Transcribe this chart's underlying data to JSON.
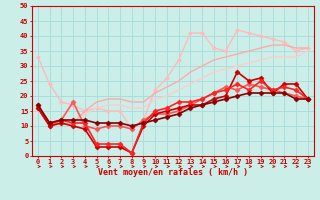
{
  "title": "",
  "xlabel": "Vent moyen/en rafales ( km/h )",
  "ylabel": "",
  "background_color": "#cceee8",
  "grid_color": "#aadddd",
  "xlim": [
    -0.5,
    23.5
  ],
  "ylim": [
    0,
    50
  ],
  "yticks": [
    0,
    5,
    10,
    15,
    20,
    25,
    30,
    35,
    40,
    45,
    50
  ],
  "xticks": [
    0,
    1,
    2,
    3,
    4,
    5,
    6,
    7,
    8,
    9,
    10,
    11,
    12,
    13,
    14,
    15,
    16,
    17,
    18,
    19,
    20,
    21,
    22,
    23
  ],
  "series": [
    {
      "x": [
        0,
        1,
        2,
        3,
        4,
        5,
        6,
        7,
        8,
        9,
        10,
        11,
        12,
        13,
        14,
        15,
        16,
        17,
        18,
        19,
        20,
        21,
        22,
        23
      ],
      "y": [
        33,
        24,
        18,
        17,
        15,
        16,
        15,
        15,
        9,
        12,
        22,
        26,
        32,
        41,
        41,
        36,
        35,
        42,
        41,
        40,
        39,
        38,
        35,
        36
      ],
      "color": "#ffbbbb",
      "lw": 1.0,
      "marker": "D",
      "markersize": 2.0,
      "zorder": 2
    },
    {
      "x": [
        0,
        1,
        2,
        3,
        4,
        5,
        6,
        7,
        8,
        9,
        10,
        11,
        12,
        13,
        14,
        15,
        16,
        17,
        18,
        19,
        20,
        21,
        22,
        23
      ],
      "y": [
        16,
        10,
        11,
        11,
        15,
        18,
        19,
        19,
        18,
        18,
        21,
        23,
        25,
        28,
        30,
        32,
        33,
        34,
        35,
        36,
        37,
        37,
        36,
        36
      ],
      "color": "#ffaaaa",
      "lw": 1.0,
      "marker": null,
      "zorder": 2
    },
    {
      "x": [
        0,
        1,
        2,
        3,
        4,
        5,
        6,
        7,
        8,
        9,
        10,
        11,
        12,
        13,
        14,
        15,
        16,
        17,
        18,
        19,
        20,
        21,
        22,
        23
      ],
      "y": [
        16,
        10,
        11,
        11,
        14,
        16,
        17,
        17,
        16,
        16,
        19,
        20,
        22,
        24,
        26,
        28,
        29,
        30,
        31,
        32,
        33,
        33,
        33,
        35
      ],
      "color": "#ffcccc",
      "lw": 1.0,
      "marker": null,
      "zorder": 2
    },
    {
      "x": [
        0,
        1,
        2,
        3,
        4,
        5,
        6,
        7,
        8,
        9,
        10,
        11,
        12,
        13,
        14,
        15,
        16,
        17,
        18,
        19,
        20,
        21,
        22,
        23
      ],
      "y": [
        16,
        10,
        11,
        10,
        9,
        3,
        3,
        3,
        1,
        10,
        14,
        15,
        16,
        17,
        17,
        19,
        20,
        28,
        25,
        26,
        21,
        24,
        24,
        19
      ],
      "color": "#cc0000",
      "lw": 1.2,
      "marker": "D",
      "markersize": 2.5,
      "zorder": 5
    },
    {
      "x": [
        0,
        1,
        2,
        3,
        4,
        5,
        6,
        7,
        8,
        9,
        10,
        11,
        12,
        13,
        14,
        15,
        16,
        17,
        18,
        19,
        20,
        21,
        22,
        23
      ],
      "y": [
        17,
        11,
        12,
        11,
        11,
        4,
        4,
        4,
        1,
        11,
        15,
        16,
        18,
        18,
        19,
        21,
        22,
        24,
        22,
        25,
        22,
        23,
        22,
        19
      ],
      "color": "#ff2222",
      "lw": 1.2,
      "marker": "D",
      "markersize": 2.5,
      "zorder": 5
    },
    {
      "x": [
        0,
        1,
        2,
        3,
        4,
        5,
        6,
        7,
        8,
        9,
        10,
        11,
        12,
        13,
        14,
        15,
        16,
        17,
        18,
        19,
        20,
        21,
        22,
        23
      ],
      "y": [
        17,
        11,
        12,
        12,
        12,
        11,
        11,
        11,
        10,
        11,
        12,
        13,
        14,
        16,
        17,
        18,
        19,
        20,
        21,
        21,
        21,
        21,
        19,
        19
      ],
      "color": "#880000",
      "lw": 1.2,
      "marker": "D",
      "markersize": 2.5,
      "zorder": 5
    },
    {
      "x": [
        0,
        1,
        2,
        3,
        4,
        5,
        6,
        7,
        8,
        9,
        10,
        11,
        12,
        13,
        14,
        15,
        16,
        17,
        18,
        19,
        20,
        21,
        22,
        23
      ],
      "y": [
        16,
        10,
        12,
        18,
        10,
        9,
        10,
        10,
        9,
        12,
        14,
        14,
        15,
        17,
        19,
        21,
        23,
        22,
        24,
        23,
        22,
        21,
        20,
        19
      ],
      "color": "#ff5555",
      "lw": 1.2,
      "marker": "D",
      "markersize": 2.5,
      "zorder": 4
    }
  ],
  "arrow_color": "#cc0000",
  "tick_color": "#cc0000",
  "label_color": "#cc0000",
  "tick_fontsize": 5,
  "xlabel_fontsize": 6
}
